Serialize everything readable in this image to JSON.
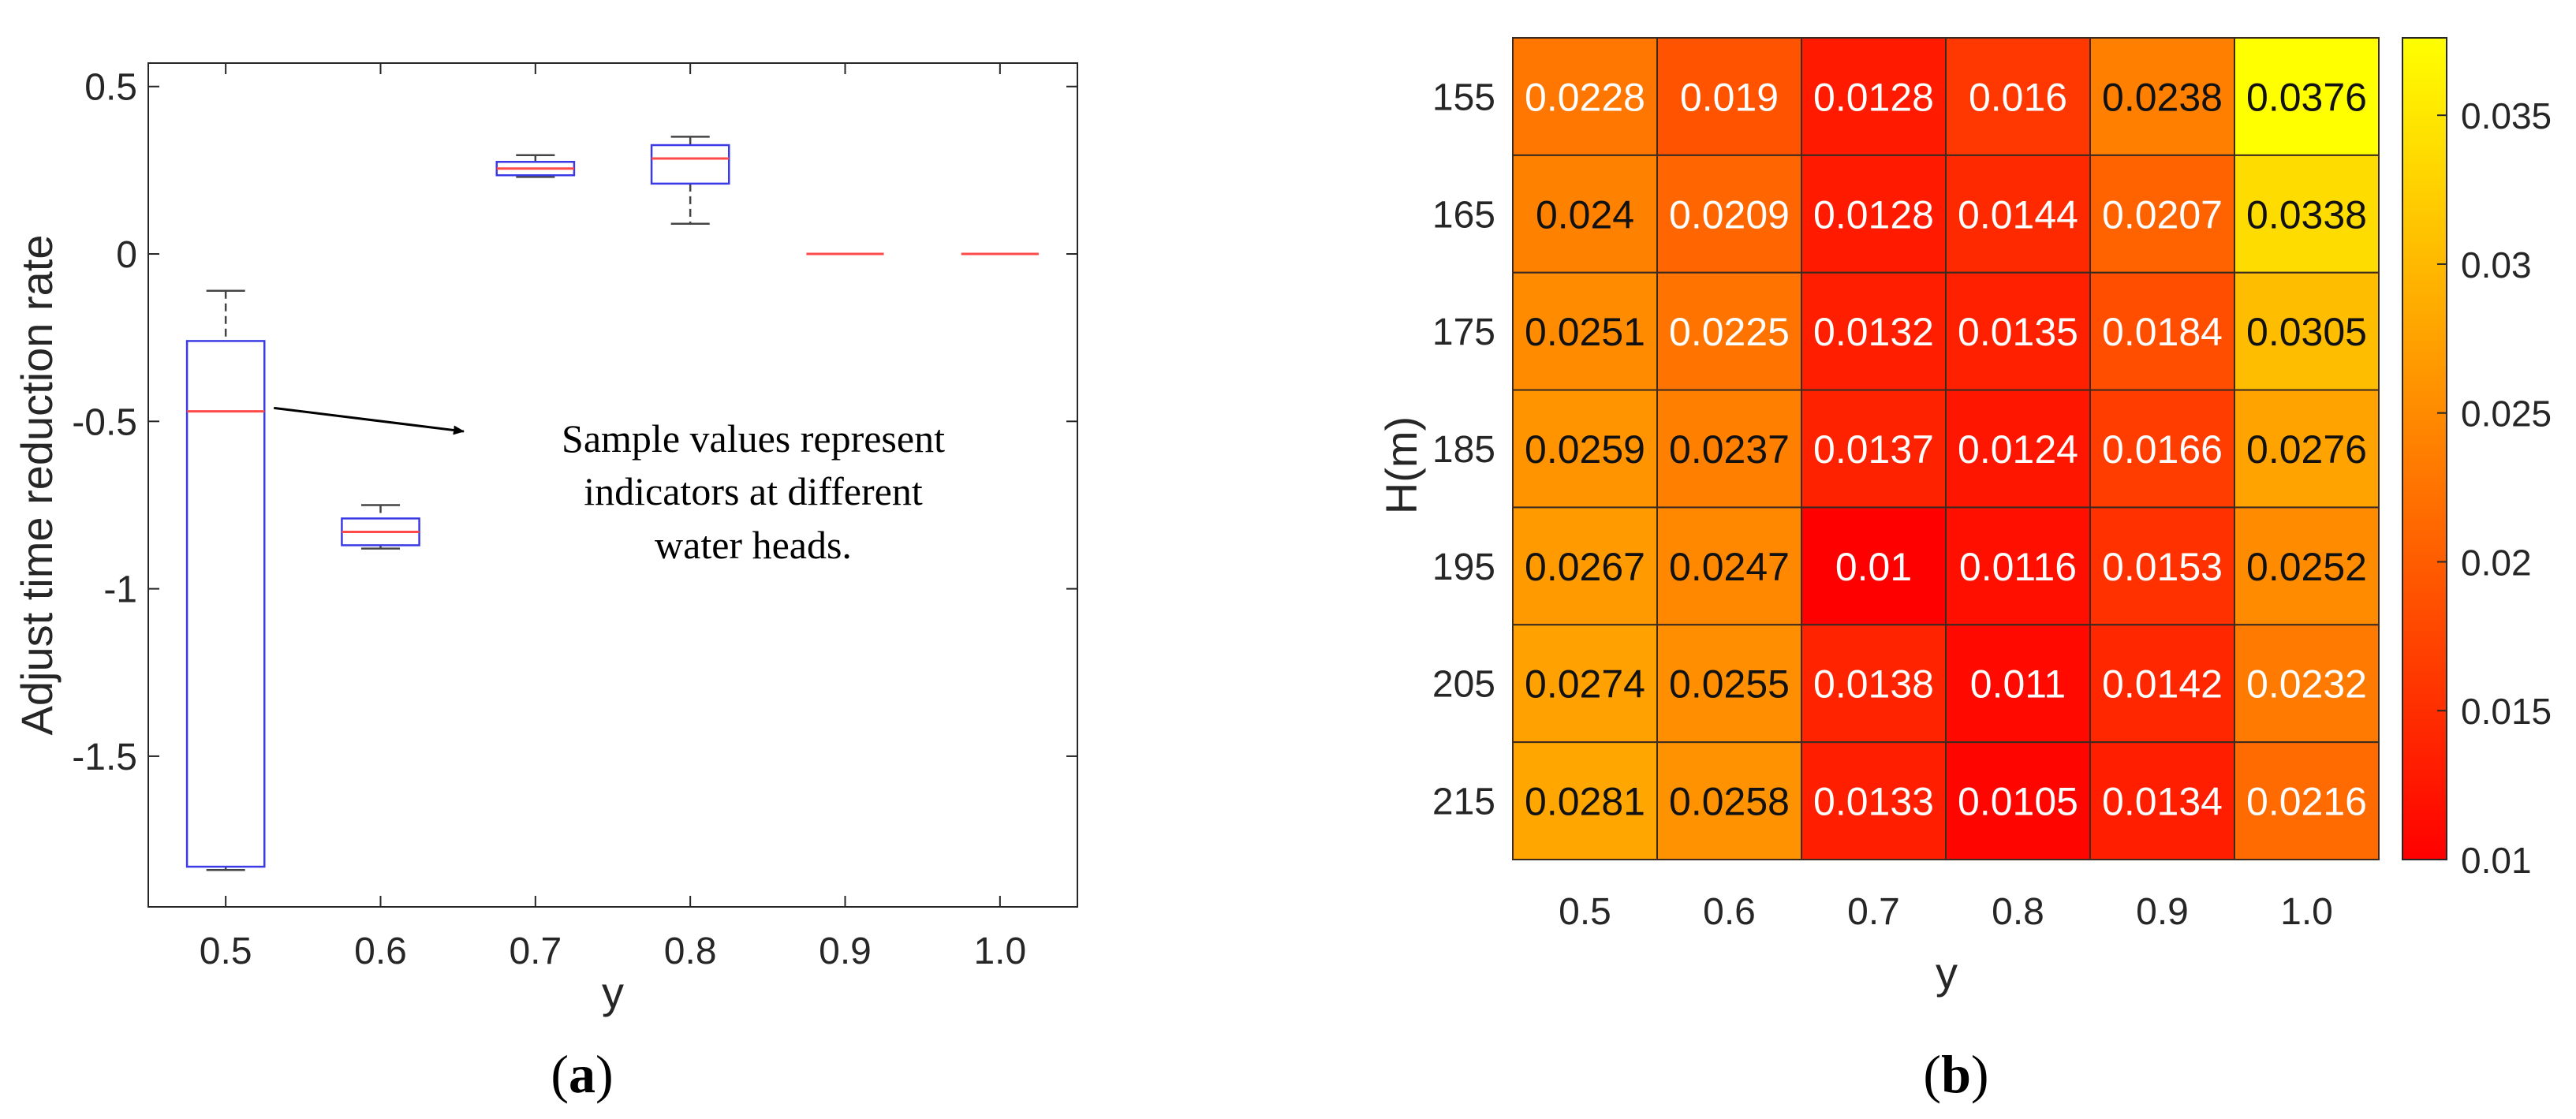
{
  "chart_data": [
    {
      "type": "box",
      "panel_label": "(a)",
      "panel_letter": "a",
      "xlabel": "y",
      "ylabel": "Adjust time reduction rate",
      "categories": [
        "0.5",
        "0.6",
        "0.7",
        "0.8",
        "0.9",
        "1.0"
      ],
      "ylim": [
        -1.95,
        0.57
      ],
      "yticks": [
        0.5,
        0,
        -0.5,
        -1,
        -1.5
      ],
      "ytick_labels": [
        "0.5",
        "0",
        "-0.5",
        "-1",
        "-1.5"
      ],
      "boxes": [
        {
          "category": "0.5",
          "min": -1.84,
          "q1": -1.83,
          "median": -0.47,
          "q3": -0.26,
          "max": -0.11
        },
        {
          "category": "0.6",
          "min": -0.88,
          "q1": -0.87,
          "median": -0.83,
          "q3": -0.79,
          "max": -0.75
        },
        {
          "category": "0.7",
          "min": 0.23,
          "q1": 0.235,
          "median": 0.255,
          "q3": 0.275,
          "max": 0.295
        },
        {
          "category": "0.8",
          "min": 0.09,
          "q1": 0.21,
          "median": 0.285,
          "q3": 0.325,
          "max": 0.35
        },
        {
          "category": "0.9",
          "min": 0,
          "q1": 0,
          "median": 0,
          "q3": 0,
          "max": 0
        },
        {
          "category": "1.0",
          "min": 0,
          "q1": 0,
          "median": 0,
          "q3": 0,
          "max": 0
        }
      ],
      "box_color": "#3a3ae6",
      "median_color": "#ff4a4a",
      "whisker_color": "#444444",
      "annotation": {
        "lines": [
          "Sample values represent",
          "indicators at different",
          "water heads."
        ],
        "arrow_from": {
          "x": "0.5",
          "y": -0.46
        },
        "arrow_to_y": -0.53
      },
      "grid": false
    },
    {
      "type": "heatmap",
      "panel_label": "(b)",
      "panel_letter": "b",
      "xlabel": "y",
      "ylabel": "H(m)",
      "x": [
        "0.5",
        "0.6",
        "0.7",
        "0.8",
        "0.9",
        "1.0"
      ],
      "y": [
        "155",
        "165",
        "175",
        "185",
        "195",
        "205",
        "215"
      ],
      "values": [
        [
          0.0228,
          0.019,
          0.0128,
          0.016,
          0.0238,
          0.0376
        ],
        [
          0.024,
          0.0209,
          0.0128,
          0.0144,
          0.0207,
          0.0338
        ],
        [
          0.0251,
          0.0225,
          0.0132,
          0.0135,
          0.0184,
          0.0305
        ],
        [
          0.0259,
          0.0237,
          0.0137,
          0.0124,
          0.0166,
          0.0276
        ],
        [
          0.0267,
          0.0247,
          0.01,
          0.0116,
          0.0153,
          0.0252
        ],
        [
          0.0274,
          0.0255,
          0.0138,
          0.011,
          0.0142,
          0.0232
        ],
        [
          0.0281,
          0.0258,
          0.0133,
          0.0105,
          0.0134,
          0.0216
        ]
      ],
      "value_labels": [
        [
          "0.0228",
          "0.019",
          "0.0128",
          "0.016",
          "0.0238",
          "0.0376"
        ],
        [
          "0.024",
          "0.0209",
          "0.0128",
          "0.0144",
          "0.0207",
          "0.0338"
        ],
        [
          "0.0251",
          "0.0225",
          "0.0132",
          "0.0135",
          "0.0184",
          "0.0305"
        ],
        [
          "0.0259",
          "0.0237",
          "0.0137",
          "0.0124",
          "0.0166",
          "0.0276"
        ],
        [
          "0.0267",
          "0.0247",
          "0.01",
          "0.0116",
          "0.0153",
          "0.0252"
        ],
        [
          "0.0274",
          "0.0255",
          "0.0138",
          "0.011",
          "0.0142",
          "0.0232"
        ],
        [
          "0.0281",
          "0.0258",
          "0.0133",
          "0.0105",
          "0.0134",
          "0.0216"
        ]
      ],
      "colorbar": {
        "range": [
          0.01,
          0.0376
        ],
        "ticks": [
          0.01,
          0.015,
          0.02,
          0.025,
          0.03,
          0.035
        ],
        "tick_labels": [
          "0.01",
          "0.015",
          "0.02",
          "0.025",
          "0.03",
          "0.035"
        ],
        "colormap": "autumn",
        "colors": [
          "#ff0000",
          "#ffff00"
        ]
      },
      "grid": false
    }
  ]
}
